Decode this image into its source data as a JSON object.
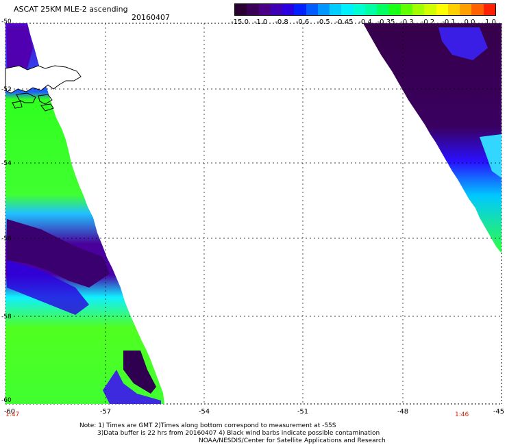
{
  "header": {
    "title": "ASCAT 25KM MLE-2 ascending",
    "date": "20160407"
  },
  "colorbar": {
    "labels": [
      "-15.0",
      "-1.0",
      "-0.8",
      "-0.6",
      "-0.5",
      "-0.45",
      "-0.4",
      "-0.35",
      "-0.3",
      "-0.2",
      "-0.1",
      "0.0",
      "1.0"
    ],
    "colors": [
      "#2a0032",
      "#3a0058",
      "#4a0085",
      "#3d00b5",
      "#2a00e0",
      "#0020ff",
      "#005cff",
      "#0096ff",
      "#00ccff",
      "#00f0ff",
      "#00ffd0",
      "#00ffa0",
      "#00ff60",
      "#18ff18",
      "#60ff00",
      "#a0ff00",
      "#d0ff00",
      "#ffff00",
      "#ffd000",
      "#ffa000",
      "#ff6000",
      "#ff2000"
    ]
  },
  "axes": {
    "y_labels": [
      "-50",
      "-52",
      "-54",
      "-56",
      "-58",
      "-60"
    ],
    "x_labels": [
      "-57",
      "-54",
      "-51",
      "-48",
      "-45"
    ],
    "left_corner": "-60"
  },
  "times": {
    "left": "1:47",
    "right": "1:46"
  },
  "notes": {
    "line1": "Note: 1) Times are GMT 2)Times along bottom correspond to measurement at -55S",
    "line2": "3)Data buffer is 22 hrs from 20160407 4) Black wind barbs indicate possible contamination",
    "line3": "NOAA/NESDIS/Center for Satellite Applications and Research"
  },
  "map": {
    "swath_left": "ASCAT swath along western edge",
    "swath_right": "ASCAT swath in north-east corner",
    "landmass": "Falkland Islands outline"
  }
}
